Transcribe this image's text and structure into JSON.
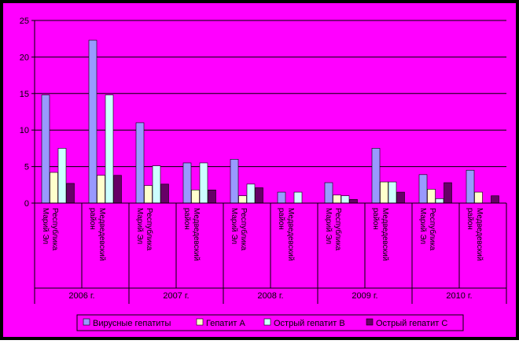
{
  "colors": {
    "frame": "#000000",
    "chart_area": "#ff00ff",
    "plot_area": "#ff00ff",
    "gridline": "#000000"
  },
  "chart_data": {
    "type": "bar",
    "title": "",
    "xlabel": "",
    "ylabel": "",
    "ylim": [
      0,
      25
    ],
    "yticks": [
      0,
      5,
      10,
      15,
      20,
      25
    ],
    "grid": true,
    "legend_position": "bottom",
    "categories": [
      "Республика Марий Эл",
      "Медведевский район",
      "Республика Марий Эл",
      "Медведевский район",
      "Республика Марий Эл",
      "Медведевский район",
      "Республика Марий Эл",
      "Медведевский район",
      "Республика Марий Эл",
      "Медведевский район"
    ],
    "groups": [
      "2006 г.",
      "2007 г.",
      "2008 г.",
      "2009 г.",
      "2010 г."
    ],
    "series": [
      {
        "name": "Вирусные гепатиты",
        "color": "#9999ff",
        "values": [
          14.8,
          22.3,
          11.0,
          5.5,
          6.0,
          1.5,
          2.8,
          7.5,
          3.9,
          4.5
        ]
      },
      {
        "name": "Гепатит А",
        "color": "#ffffcc",
        "values": [
          4.2,
          3.8,
          2.4,
          1.8,
          1.0,
          0,
          1.1,
          2.9,
          1.9,
          1.5
        ]
      },
      {
        "name": "Острый гепатит В",
        "color": "#ccffff",
        "values": [
          7.5,
          14.8,
          5.1,
          5.5,
          2.6,
          1.5,
          1.0,
          2.9,
          0.6,
          0
        ]
      },
      {
        "name": "Острый гепатит С",
        "color": "#660066",
        "values": [
          2.7,
          3.8,
          2.6,
          1.8,
          2.1,
          0,
          0.5,
          1.5,
          2.8,
          1.0
        ]
      }
    ]
  }
}
